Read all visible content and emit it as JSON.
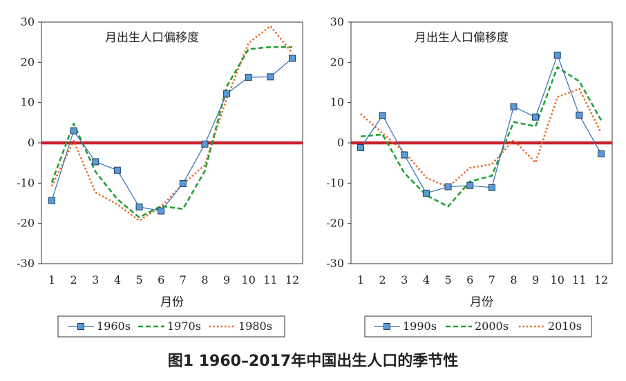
{
  "figure_caption": "图1   1960–2017年中国出生人口的季节性",
  "colors": {
    "zero_line": "#c8202a",
    "blue": "#2e6db5",
    "marker_fill": "#5b9bd5",
    "green": "#23a033",
    "orange": "#e46c25"
  },
  "chart_data": [
    {
      "type": "line",
      "title": "月出生人口偏移度",
      "xlabel": "月份",
      "ylabel": "",
      "ylim": [
        -30,
        30
      ],
      "yticks": [
        "30",
        "20",
        "10",
        "0",
        "-10",
        "-20",
        "-30"
      ],
      "categories": [
        "1",
        "2",
        "3",
        "4",
        "5",
        "6",
        "7",
        "8",
        "9",
        "10",
        "11",
        "12"
      ],
      "zero_line": true,
      "legend_position": "bottom",
      "series": [
        {
          "name": "1960s",
          "style": "solid-marker",
          "values": [
            -14.3,
            3.0,
            -4.7,
            -6.8,
            -15.9,
            -16.9,
            -10.1,
            -0.3,
            12.2,
            16.3,
            16.4,
            21.0
          ]
        },
        {
          "name": "1970s",
          "style": "dashed",
          "values": [
            -9.8,
            4.8,
            -7.2,
            -14.0,
            -18.5,
            -15.7,
            -16.4,
            -7.0,
            14.0,
            23.3,
            23.8,
            23.8
          ]
        },
        {
          "name": "1980s",
          "style": "dotted",
          "values": [
            -10.8,
            0.5,
            -12.3,
            -15.3,
            -19.3,
            -15.8,
            -10.2,
            -5.5,
            11.0,
            24.8,
            29.0,
            22.3
          ]
        }
      ]
    },
    {
      "type": "line",
      "title": "月出生人口偏移度",
      "xlabel": "月份",
      "ylabel": "",
      "ylim": [
        -30,
        30
      ],
      "yticks": [
        "30",
        "20",
        "10",
        "0",
        "-10",
        "-20",
        "-30"
      ],
      "categories": [
        "1",
        "2",
        "3",
        "4",
        "5",
        "6",
        "7",
        "8",
        "9",
        "10",
        "11",
        "12"
      ],
      "zero_line": true,
      "legend_position": "bottom",
      "series": [
        {
          "name": "1990s",
          "style": "solid-marker",
          "values": [
            -1.2,
            6.8,
            -3.0,
            -12.5,
            -10.9,
            -10.6,
            -11.1,
            9.0,
            6.4,
            21.8,
            6.9,
            -2.7
          ]
        },
        {
          "name": "2000s",
          "style": "dashed",
          "values": [
            1.6,
            2.1,
            -7.5,
            -13.0,
            -15.8,
            -9.6,
            -8.2,
            5.2,
            4.1,
            18.8,
            15.3,
            5.6
          ]
        },
        {
          "name": "2010s",
          "style": "dotted",
          "values": [
            7.2,
            2.4,
            -2.3,
            -8.6,
            -11.0,
            -6.2,
            -5.3,
            0.7,
            -4.9,
            11.4,
            13.4,
            2.5
          ]
        }
      ]
    }
  ]
}
